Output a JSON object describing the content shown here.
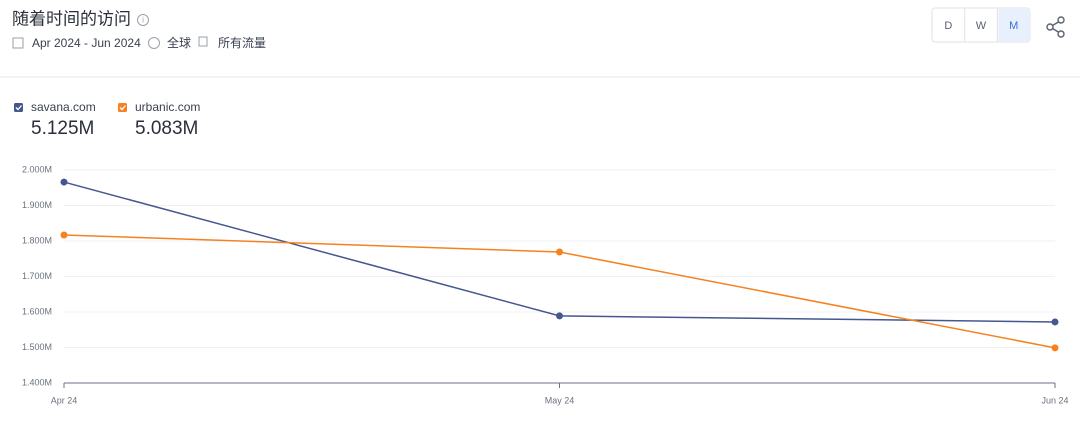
{
  "header": {
    "title": "随着时间的访问",
    "date_range": "Apr 2024 - Jun 2024",
    "region": "全球",
    "traffic": "所有流量",
    "granularity": [
      "D",
      "W",
      "M"
    ],
    "selected": "M"
  },
  "chart_data": {
    "type": "line",
    "categories": [
      "Apr 24",
      "May 24",
      "Jun 24"
    ],
    "series": [
      {
        "name": "savana.com",
        "total": "5.125M",
        "color": "#44578f",
        "values": [
          1966000,
          1589000,
          1572000
        ]
      },
      {
        "name": "urbanic.com",
        "total": "5.083M",
        "color": "#f5821f",
        "values": [
          1817000,
          1769000,
          1499000
        ]
      }
    ],
    "ylim": [
      1400000,
      2000000
    ],
    "yticks": [
      {
        "value": 1400000,
        "label": "1.400M"
      },
      {
        "value": 1500000,
        "label": "1.500M"
      },
      {
        "value": 1600000,
        "label": "1.600M"
      },
      {
        "value": 1700000,
        "label": "1.700M"
      },
      {
        "value": 1800000,
        "label": "1.800M"
      },
      {
        "value": 1900000,
        "label": "1.900M"
      },
      {
        "value": 2000000,
        "label": "2.000M"
      }
    ],
    "grid": true
  }
}
